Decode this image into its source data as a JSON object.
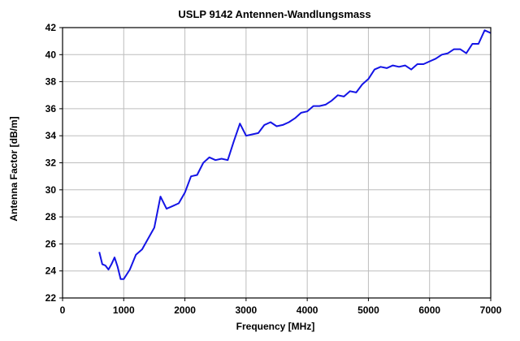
{
  "chart_data": {
    "type": "line",
    "title": "USLP 9142 Antennen-Wandlungsmass",
    "xlabel": "Frequency [MHz]",
    "ylabel": "Antenna Factor [dB/m]",
    "xlim": [
      0,
      7000
    ],
    "ylim": [
      22,
      42
    ],
    "x_ticks": [
      0,
      1000,
      2000,
      3000,
      4000,
      5000,
      6000,
      7000
    ],
    "y_ticks": [
      22,
      24,
      26,
      28,
      30,
      32,
      34,
      36,
      38,
      40,
      42
    ],
    "grid": true,
    "series": [
      {
        "color": "#1414e6",
        "x": [
          600,
          650,
          700,
          750,
          800,
          850,
          900,
          950,
          1000,
          1100,
          1200,
          1300,
          1400,
          1500,
          1600,
          1700,
          1800,
          1900,
          2000,
          2100,
          2200,
          2300,
          2400,
          2500,
          2600,
          2700,
          2800,
          2900,
          3000,
          3100,
          3200,
          3300,
          3400,
          3500,
          3600,
          3700,
          3800,
          3900,
          4000,
          4100,
          4200,
          4300,
          4400,
          4500,
          4600,
          4700,
          4800,
          4900,
          5000,
          5100,
          5200,
          5300,
          5400,
          5500,
          5600,
          5700,
          5800,
          5900,
          6000,
          6100,
          6200,
          6300,
          6400,
          6500,
          6600,
          6700,
          6800,
          6900,
          7000
        ],
        "y": [
          25.4,
          24.5,
          24.4,
          24.1,
          24.5,
          25.0,
          24.3,
          23.4,
          23.4,
          24.1,
          25.2,
          25.6,
          26.4,
          27.2,
          29.5,
          28.6,
          28.8,
          29.0,
          29.8,
          31.0,
          31.1,
          32.0,
          32.4,
          32.2,
          32.3,
          32.2,
          33.6,
          34.9,
          34.0,
          34.1,
          34.2,
          34.8,
          35.0,
          34.7,
          34.8,
          35.0,
          35.3,
          35.7,
          35.8,
          36.2,
          36.2,
          36.3,
          36.6,
          37.0,
          36.9,
          37.3,
          37.2,
          37.8,
          38.2,
          38.9,
          39.1,
          39.0,
          39.2,
          39.1,
          39.2,
          38.9,
          39.3,
          39.3,
          39.5,
          39.7,
          40.0,
          40.1,
          40.4,
          40.4,
          40.1,
          40.8,
          40.8,
          41.8,
          41.6
        ]
      }
    ]
  }
}
